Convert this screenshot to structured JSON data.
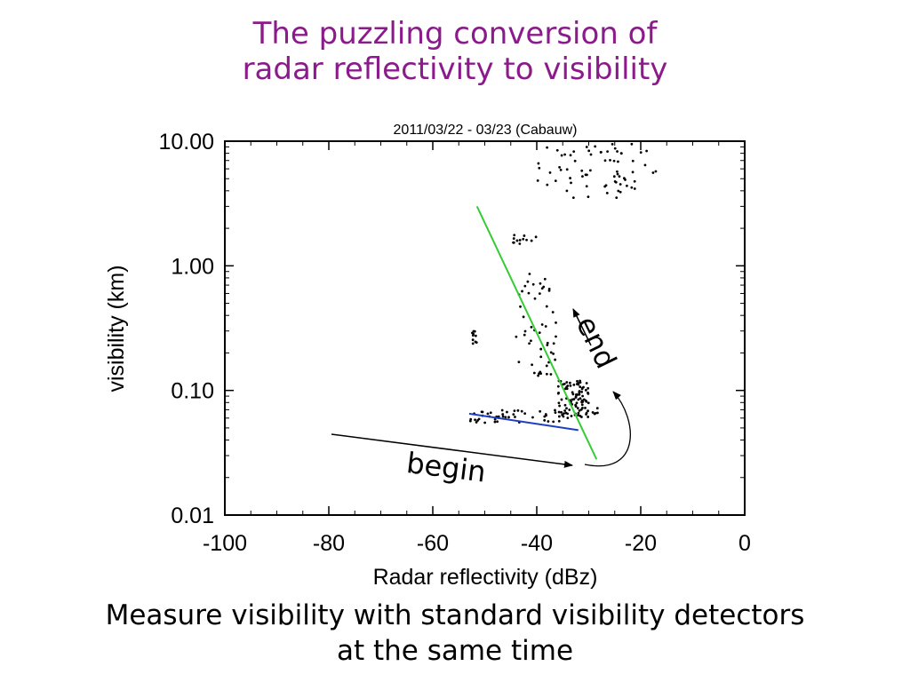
{
  "slide": {
    "title_line1": "The puzzling conversion of",
    "title_line2": "radar reflectivity to visibility",
    "caption_line1": "Measure visibility with standard visibility detectors",
    "caption_line2": "at the same time",
    "annotation_begin": "begin",
    "annotation_end": "end"
  },
  "chart_data": {
    "type": "scatter",
    "title": "2011/03/22 - 03/23 (Cabauw)",
    "xlabel": "Radar reflectivity (dBz)",
    "ylabel": "visibility (km)",
    "xlim": [
      -100,
      0
    ],
    "ylim": [
      0.01,
      10
    ],
    "yscale": "log",
    "x_ticks": [
      -100,
      -80,
      -60,
      -40,
      -20,
      0
    ],
    "x_tick_labels": [
      "-100",
      "-80",
      "-60",
      "-40",
      "-20",
      "0"
    ],
    "y_ticks": [
      0.01,
      0.1,
      1,
      10
    ],
    "y_tick_labels": [
      "0.01",
      "0.10",
      "1.00",
      "10.00"
    ],
    "grid": false,
    "point_color": "#000000",
    "fit_lines": [
      {
        "color": "#33cc33",
        "x": [
          -51.5,
          -28.5
        ],
        "y": [
          3.0,
          0.028
        ]
      },
      {
        "color": "#1f3fbf",
        "x": [
          -53,
          -32
        ],
        "y": [
          0.065,
          0.048
        ]
      }
    ],
    "point_clusters": [
      {
        "x": [
          -40,
          -17
        ],
        "y": [
          3.5,
          9.5
        ],
        "n": 70
      },
      {
        "x": [
          -45,
          -40
        ],
        "y": [
          1.5,
          1.8
        ],
        "n": 12
      },
      {
        "x": [
          -52.5,
          -51.5
        ],
        "y": [
          0.22,
          0.3
        ],
        "n": 10
      },
      {
        "x": [
          -36,
          -30
        ],
        "y": [
          0.06,
          0.12
        ],
        "n": 90
      },
      {
        "x": [
          -53,
          -35
        ],
        "y": [
          0.055,
          0.07
        ],
        "n": 45
      },
      {
        "x": [
          -44,
          -36
        ],
        "y": [
          0.13,
          0.9
        ],
        "n": 50
      },
      {
        "x": [
          -31,
          -28
        ],
        "y": [
          0.063,
          0.072
        ],
        "n": 8
      }
    ]
  }
}
